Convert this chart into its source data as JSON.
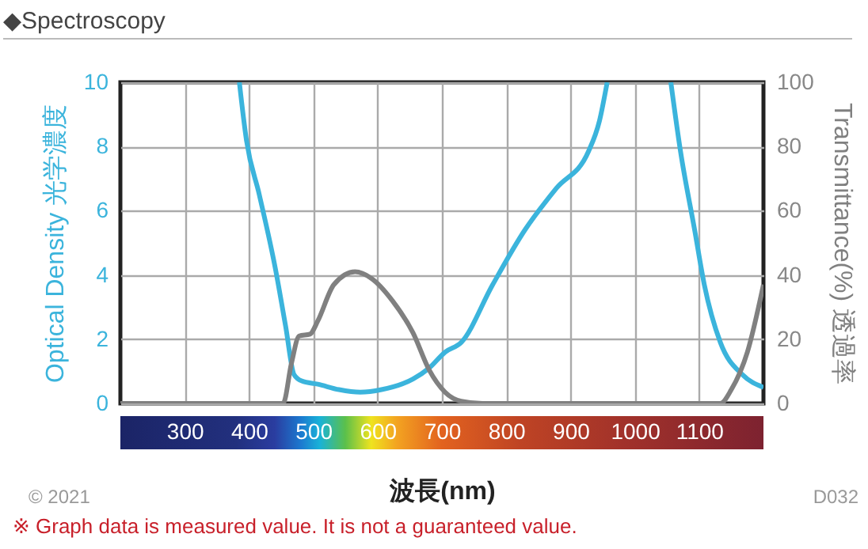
{
  "chart_data": {
    "type": "line",
    "title": "◆Spectroscopy",
    "xlabel": "波長(nm)",
    "ylabel": "Optical Density 光学濃度",
    "y2label": "Transmittance(%) 透過率",
    "xlim": [
      200,
      1200
    ],
    "xticks": [
      300,
      400,
      500,
      600,
      700,
      800,
      900,
      1000,
      1100
    ],
    "ylim": [
      0,
      10
    ],
    "yticks": [
      0,
      2,
      4,
      6,
      8,
      10
    ],
    "y2lim": [
      0,
      100
    ],
    "y2ticks": [
      0,
      20,
      40,
      60,
      80,
      100
    ],
    "grid": true,
    "series": [
      {
        "color": "#3bb4dc",
        "x": [
          385,
          396,
          416,
          441,
          457,
          470,
          482,
          507,
          540,
          573,
          606,
          655,
          680,
          705,
          730,
          779,
          829,
          878,
          928,
          945,
          957,
          1000,
          1056,
          1071,
          1093,
          1108,
          1133,
          1167,
          1200
        ],
        "values": [
          10,
          8.2,
          6.5,
          4.2,
          2.4,
          0.9,
          0.7,
          0.6,
          0.43,
          0.35,
          0.43,
          0.76,
          1.1,
          1.6,
          1.9,
          3.7,
          5.4,
          6.7,
          7.85,
          8.8,
          10,
          null,
          10,
          7.85,
          5.4,
          3.7,
          1.9,
          0.9,
          0.5
        ]
      },
      {
        "color": "#808080",
        "axis": "y2",
        "x": [
          200,
          453,
          466,
          478,
          495,
          507,
          532,
          565,
          590,
          623,
          655,
          680,
          705,
          730,
          763,
          1133,
          1150,
          1175,
          1200
        ],
        "values": [
          0,
          0,
          12.5,
          21,
          21.6,
          25.7,
          37,
          41,
          39,
          32,
          22,
          10.5,
          3.5,
          0.7,
          0,
          0,
          4.3,
          16,
          37
        ]
      }
    ],
    "annotations": [
      "© 2021",
      "D032",
      "※ Graph data is measured value. It is not a guaranteed value."
    ]
  }
}
